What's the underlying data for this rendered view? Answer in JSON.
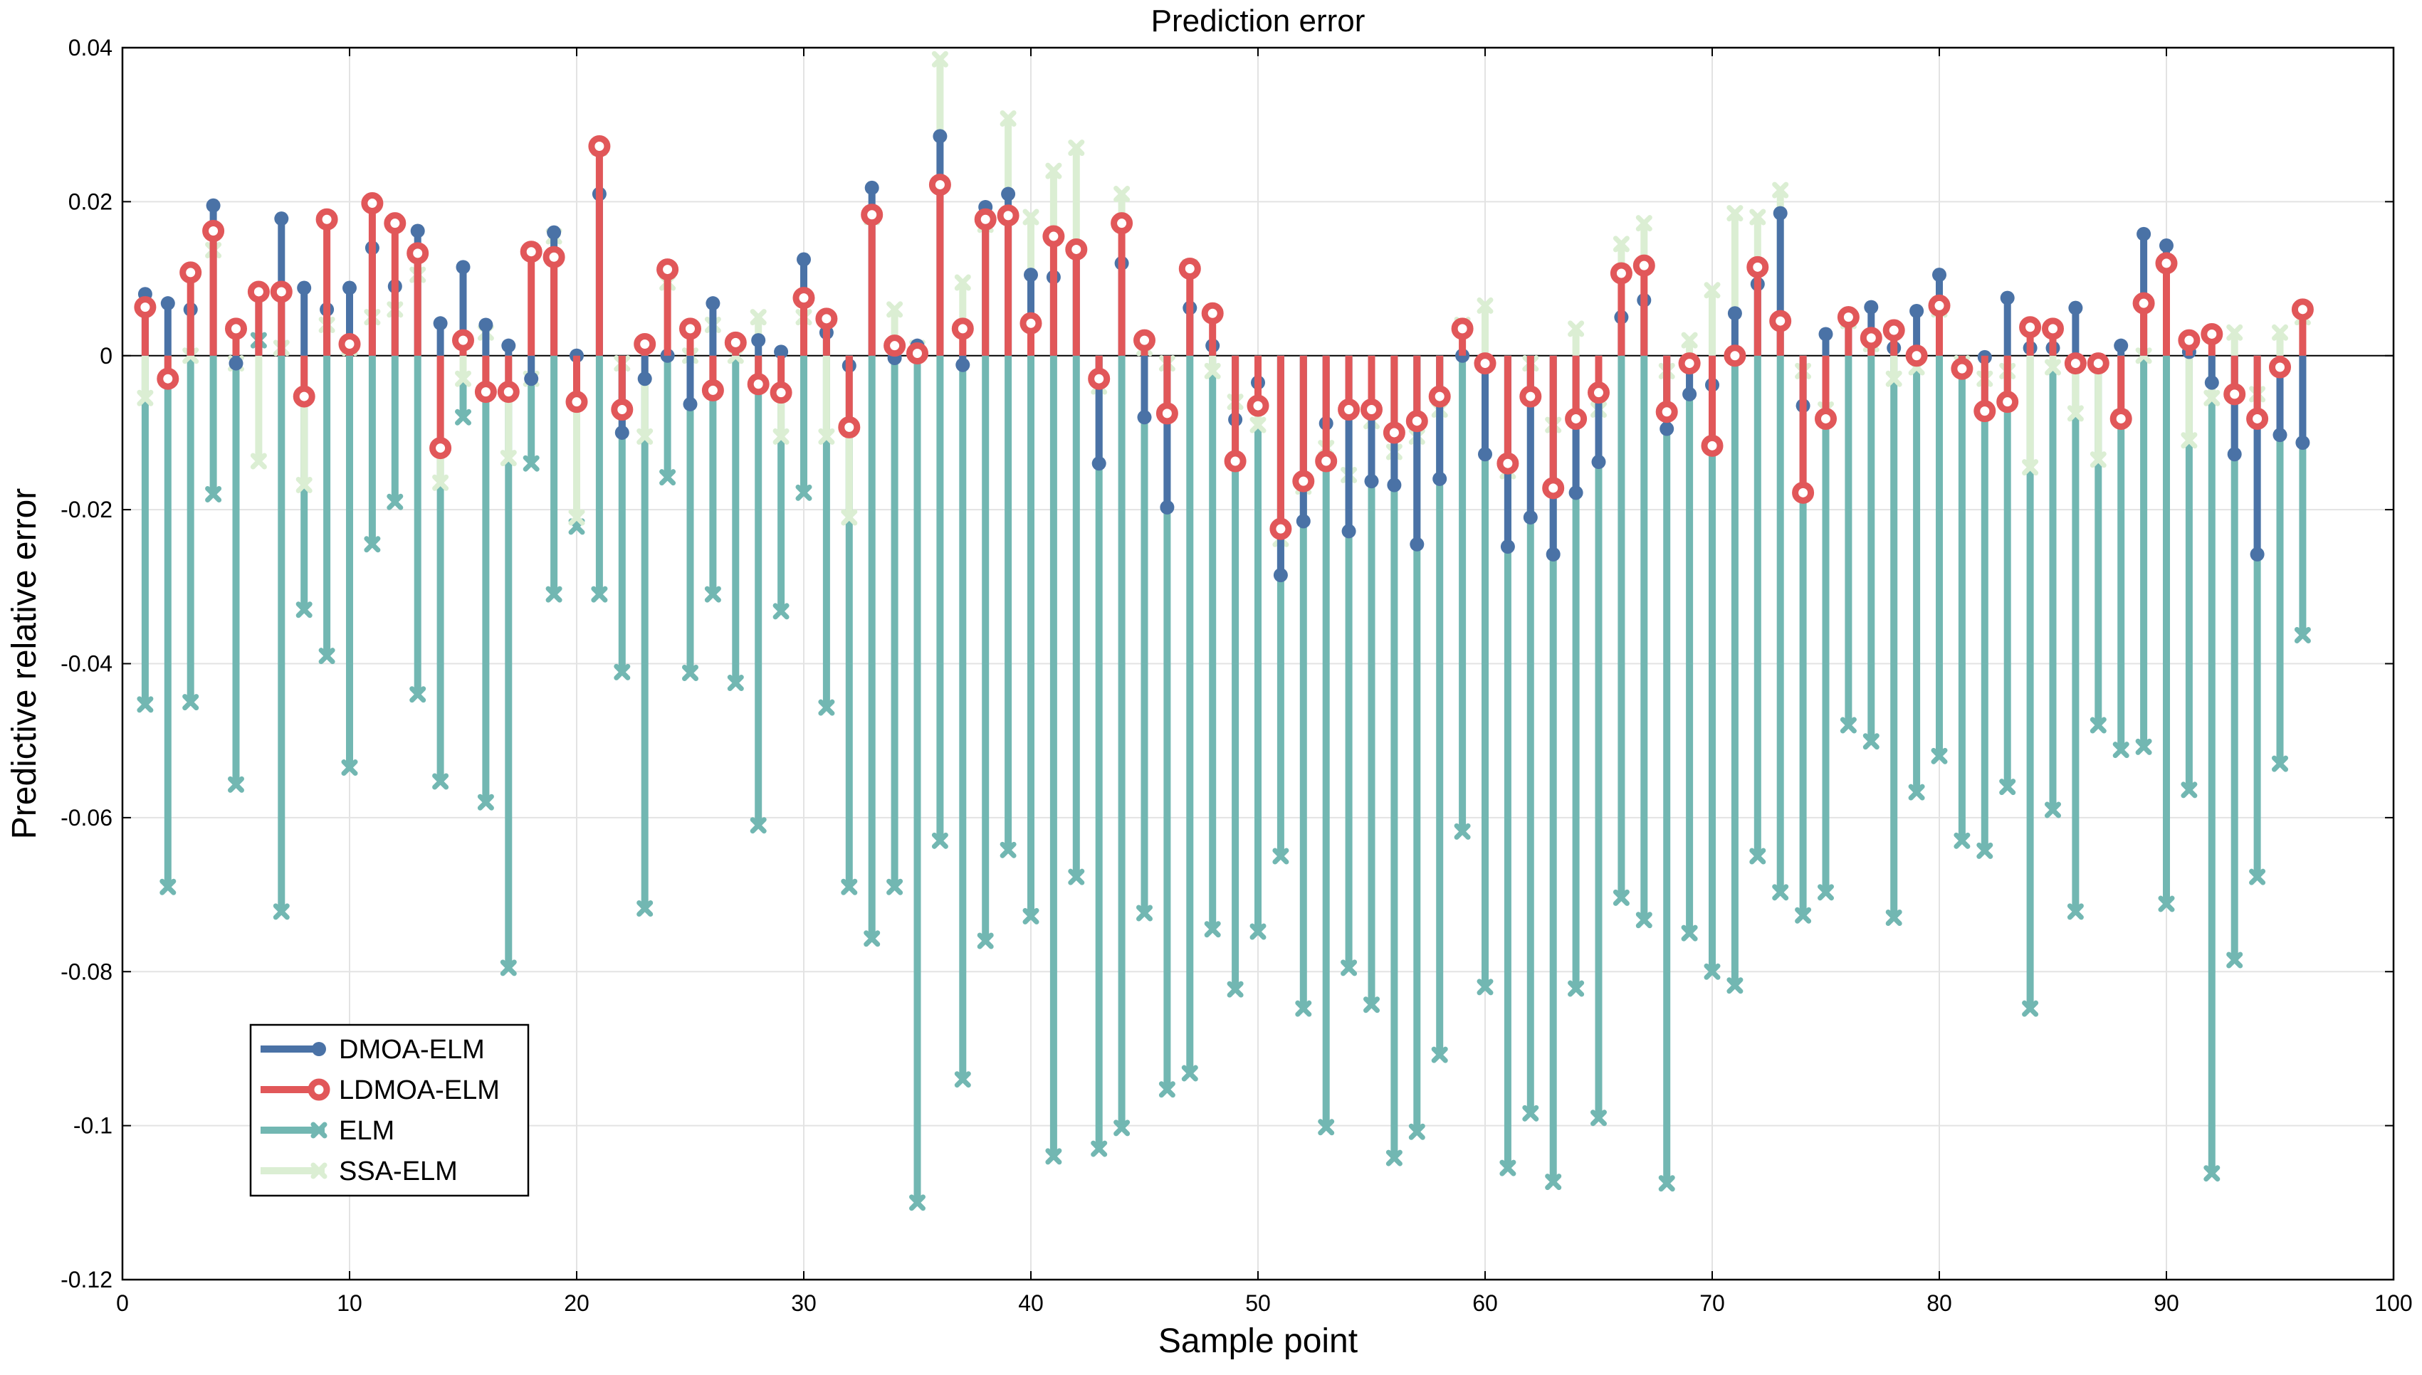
{
  "chart_data": {
    "type": "stem",
    "title": "Prediction error",
    "xlabel": "Sample point",
    "ylabel": "Predictive relative error",
    "xlim": [
      0,
      100
    ],
    "ylim": [
      -0.12,
      0.04
    ],
    "xticks": [
      0,
      10,
      20,
      30,
      40,
      50,
      60,
      70,
      80,
      90,
      100
    ],
    "xtick_labels": [
      "0",
      "10",
      "20",
      "30",
      "40",
      "50",
      "60",
      "70",
      "80",
      "90",
      "100"
    ],
    "yticks": [
      -0.12,
      -0.1,
      -0.08,
      -0.06,
      -0.04,
      -0.02,
      0,
      0.02,
      0.04
    ],
    "ytick_labels": [
      "-0.12",
      "-0.1",
      "-0.08",
      "-0.06",
      "-0.04",
      "-0.02",
      "0",
      "0.02",
      "0.04"
    ],
    "grid": true,
    "legend_position": "bottom-left",
    "x": [
      1,
      2,
      3,
      4,
      5,
      6,
      7,
      8,
      9,
      10,
      11,
      12,
      13,
      14,
      15,
      16,
      17,
      18,
      19,
      20,
      21,
      22,
      23,
      24,
      25,
      26,
      27,
      28,
      29,
      30,
      31,
      32,
      33,
      34,
      35,
      36,
      37,
      38,
      39,
      40,
      41,
      42,
      43,
      44,
      45,
      46,
      47,
      48,
      49,
      50,
      51,
      52,
      53,
      54,
      55,
      56,
      57,
      58,
      59,
      60,
      61,
      62,
      63,
      64,
      65,
      66,
      67,
      68,
      69,
      70,
      71,
      72,
      73,
      74,
      75,
      76,
      77,
      78,
      79,
      80,
      81,
      82,
      83,
      84,
      85,
      86,
      87,
      88,
      89,
      90,
      91,
      92,
      93,
      94,
      95,
      96
    ],
    "series": [
      {
        "name": "ELM",
        "color": "#72b7b2",
        "marker": "x",
        "values": [
          -0.0453,
          -0.069,
          -0.045,
          -0.018,
          -0.0557,
          0.002,
          -0.0722,
          -0.033,
          -0.039,
          -0.0535,
          -0.0245,
          -0.019,
          -0.044,
          -0.0553,
          -0.008,
          -0.058,
          -0.0795,
          -0.014,
          -0.031,
          -0.0222,
          -0.031,
          -0.0411,
          -0.0718,
          -0.0158,
          -0.0412,
          -0.031,
          -0.0425,
          -0.061,
          -0.0332,
          -0.0178,
          -0.0457,
          -0.069,
          -0.0757,
          -0.069,
          -0.11,
          -0.063,
          -0.094,
          -0.076,
          -0.0642,
          -0.0728,
          -0.104,
          -0.0677,
          -0.103,
          -0.1003,
          -0.0724,
          -0.0953,
          -0.0932,
          -0.0745,
          -0.0823,
          -0.0748,
          -0.065,
          -0.0848,
          -0.1002,
          -0.0795,
          -0.0843,
          -0.1042,
          -0.1008,
          -0.0908,
          -0.0618,
          -0.082,
          -0.1055,
          -0.0984,
          -0.1073,
          -0.0822,
          -0.099,
          -0.0704,
          -0.0733,
          -0.1075,
          -0.075,
          -0.08,
          -0.0818,
          -0.065,
          -0.0697,
          -0.0727,
          -0.0697,
          -0.048,
          -0.0501,
          -0.073,
          -0.0567,
          -0.052,
          -0.063,
          -0.0643,
          -0.056,
          -0.0848,
          -0.059,
          -0.0722,
          -0.048,
          -0.0512,
          -0.0508,
          -0.0712,
          -0.0564,
          -0.1062,
          -0.0785,
          -0.0677,
          -0.053,
          -0.0363
        ]
      },
      {
        "name": "SSA-ELM",
        "color": "#dbeed3",
        "marker": "x",
        "values": [
          -0.0055,
          -0.003,
          0.0,
          0.0137,
          -0.001,
          -0.0137,
          0.001,
          -0.0168,
          0.004,
          0.001,
          0.005,
          0.006,
          0.0105,
          -0.0165,
          -0.003,
          0.003,
          -0.0133,
          -0.003,
          0.0155,
          -0.021,
          0.027,
          -0.001,
          -0.0105,
          0.0095,
          0.0,
          0.004,
          0.0,
          0.005,
          -0.0105,
          0.005,
          -0.0105,
          -0.021,
          0.018,
          0.006,
          0.001,
          0.0385,
          0.0095,
          0.017,
          0.0308,
          0.018,
          0.024,
          0.027,
          -0.004,
          0.021,
          0.001,
          -0.001,
          0.0115,
          -0.002,
          -0.006,
          -0.009,
          -0.0238,
          -0.017,
          -0.012,
          -0.0155,
          -0.0085,
          -0.0125,
          -0.0105,
          -0.007,
          0.004,
          0.0065,
          -0.015,
          -0.001,
          -0.009,
          0.0035,
          -0.007,
          0.0145,
          0.0172,
          -0.002,
          0.002,
          0.0085,
          0.0185,
          0.018,
          0.0215,
          -0.002,
          -0.007,
          0.0045,
          0.0015,
          -0.003,
          -0.0015,
          0.006,
          -0.001,
          -0.003,
          -0.002,
          -0.0145,
          -0.0015,
          -0.0075,
          -0.0135,
          -0.008,
          0.0,
          0.012,
          -0.011,
          -0.0055,
          0.003,
          -0.005,
          0.003,
          0.005
        ]
      },
      {
        "name": "DMOA-ELM",
        "color": "#4a72a6",
        "marker": "o",
        "values": [
          0.008,
          0.0068,
          0.006,
          0.0195,
          -0.001,
          0.008,
          0.0178,
          0.0088,
          0.006,
          0.0088,
          0.014,
          0.009,
          0.0162,
          0.0042,
          0.0115,
          0.004,
          0.0013,
          -0.003,
          0.016,
          0.0,
          0.021,
          -0.01,
          -0.003,
          0.0,
          -0.0063,
          0.0068,
          0.0012,
          0.002,
          0.0005,
          0.0125,
          0.003,
          -0.0013,
          0.0218,
          -0.0003,
          0.0013,
          0.0285,
          -0.0012,
          0.0193,
          0.021,
          0.0105,
          0.0102,
          0.0138,
          -0.014,
          0.012,
          -0.008,
          -0.0197,
          0.0062,
          0.0013,
          -0.0083,
          -0.0035,
          -0.0285,
          -0.0215,
          -0.0088,
          -0.0228,
          -0.0163,
          -0.0168,
          -0.0245,
          -0.016,
          0.0,
          -0.0128,
          -0.0248,
          -0.021,
          -0.0258,
          -0.0178,
          -0.0138,
          0.005,
          0.0072,
          -0.0095,
          -0.005,
          -0.0038,
          0.0055,
          0.0093,
          0.0185,
          -0.0065,
          0.0028,
          0.0055,
          0.0063,
          0.001,
          0.0058,
          0.0105,
          -0.002,
          -0.0002,
          0.0075,
          0.001,
          0.001,
          0.0062,
          -0.001,
          0.0013,
          0.0158,
          0.0143,
          0.0005,
          -0.0035,
          -0.0128,
          -0.0258,
          -0.0103,
          -0.0113
        ]
      },
      {
        "name": "LDMOA-ELM",
        "color": "#e15759",
        "marker": "o",
        "values": [
          0.0063,
          -0.003,
          0.0108,
          0.0162,
          0.0035,
          0.0083,
          0.0083,
          -0.0053,
          0.0177,
          0.0015,
          0.0198,
          0.0172,
          0.0133,
          -0.012,
          0.002,
          -0.0047,
          -0.0047,
          0.0135,
          0.0128,
          -0.006,
          0.0272,
          -0.007,
          0.0015,
          0.0112,
          0.0035,
          -0.0045,
          0.0017,
          -0.0037,
          -0.0048,
          0.0075,
          0.0048,
          -0.0093,
          0.0183,
          0.0013,
          0.0003,
          0.0222,
          0.0035,
          0.0177,
          0.0182,
          0.0042,
          0.0155,
          0.0138,
          -0.003,
          0.0172,
          0.002,
          -0.0075,
          0.0113,
          0.0055,
          -0.0137,
          -0.0065,
          -0.0225,
          -0.0163,
          -0.0137,
          -0.007,
          -0.007,
          -0.01,
          -0.0085,
          -0.0053,
          0.0035,
          -0.001,
          -0.014,
          -0.0053,
          -0.0172,
          -0.0082,
          -0.0048,
          0.0107,
          0.0117,
          -0.0073,
          -0.001,
          -0.0117,
          0.0,
          0.0115,
          0.0045,
          -0.0178,
          -0.0082,
          0.005,
          0.0023,
          0.0033,
          0.0,
          0.0065,
          -0.0017,
          -0.0072,
          -0.006,
          0.0037,
          0.0035,
          -0.001,
          -0.001,
          -0.0082,
          0.0068,
          0.012,
          0.002,
          0.0028,
          -0.005,
          -0.0082,
          -0.0015,
          0.006
        ]
      }
    ],
    "legend": [
      {
        "label": "DMOA-ELM",
        "color": "#4a72a6",
        "marker": "o"
      },
      {
        "label": "LDMOA-ELM",
        "color": "#e15759",
        "marker": "o"
      },
      {
        "label": "ELM",
        "color": "#72b7b2",
        "marker": "x"
      },
      {
        "label": "SSA-ELM",
        "color": "#dbeed3",
        "marker": "x"
      }
    ]
  }
}
